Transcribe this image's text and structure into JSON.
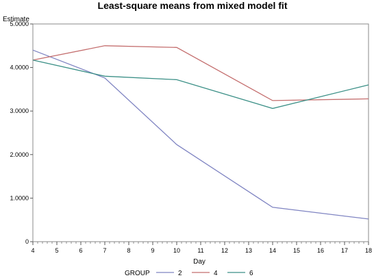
{
  "chart_data": {
    "type": "line",
    "title": "Least-square means from mixed model fit",
    "xlabel": "Day",
    "ylabel": "Estimate",
    "xlim": [
      4,
      18
    ],
    "ylim": [
      0,
      5
    ],
    "x_ticks": [
      4,
      5,
      6,
      7,
      8,
      9,
      10,
      11,
      12,
      13,
      14,
      15,
      16,
      17,
      18
    ],
    "y_ticks": [
      0,
      1,
      2,
      3,
      4,
      5
    ],
    "y_tick_labels": [
      "0",
      "1.0000",
      "2.0000",
      "3.0000",
      "4.0000",
      "5.0000"
    ],
    "grid": false,
    "legend": {
      "title": "GROUP",
      "placement": "bottom"
    },
    "series": [
      {
        "name": "2",
        "color": "#7f84c2",
        "x": [
          4,
          7,
          10,
          14,
          18
        ],
        "values": [
          4.4,
          3.76,
          2.23,
          0.79,
          0.52
        ]
      },
      {
        "name": "4",
        "color": "#c46e6e",
        "x": [
          4,
          7,
          10,
          14,
          18
        ],
        "values": [
          4.17,
          4.5,
          4.46,
          3.24,
          3.28
        ]
      },
      {
        "name": "6",
        "color": "#3a8f86",
        "x": [
          4,
          7,
          10,
          14,
          18
        ],
        "values": [
          4.17,
          3.8,
          3.72,
          3.06,
          3.6
        ]
      }
    ]
  }
}
